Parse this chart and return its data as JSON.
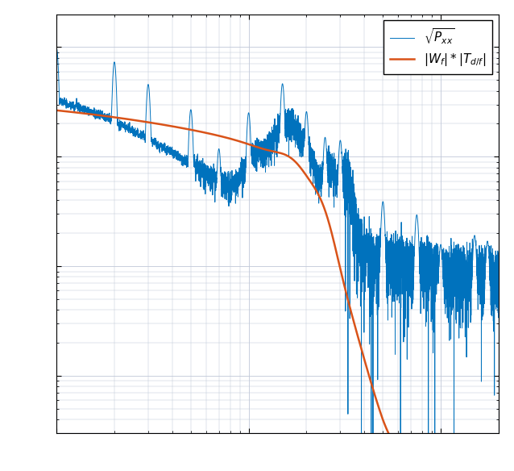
{
  "blue_color": "#0072BD",
  "orange_color": "#D95319",
  "background_color": "#ffffff",
  "grid_color": "#c0c8d8",
  "legend_label_blue": "$\\sqrt{P_{xx}}$",
  "legend_label_orange": "$|W_f| * |T_{d/f}|$",
  "xlim": [
    1,
    200
  ],
  "ylim": [
    0.0003,
    2.0
  ],
  "freq_min": 1,
  "freq_max": 200,
  "n_points": 8000,
  "seed": 17
}
